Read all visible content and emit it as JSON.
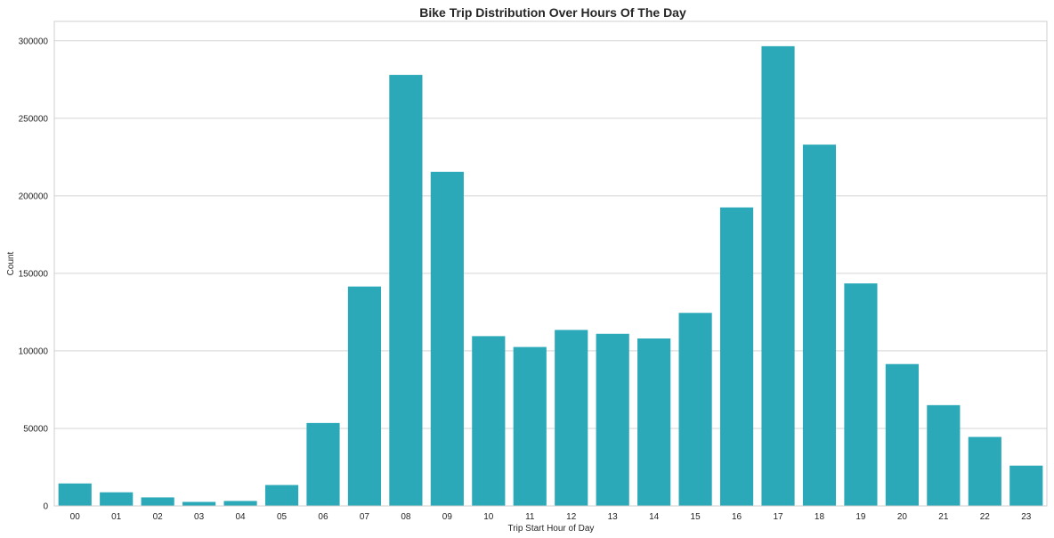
{
  "chart_data": {
    "type": "bar",
    "title": "Bike Trip Distribution Over Hours Of The Day",
    "xlabel": "Trip Start Hour of Day",
    "ylabel": "Count",
    "categories": [
      "00",
      "01",
      "02",
      "03",
      "04",
      "05",
      "06",
      "07",
      "08",
      "09",
      "10",
      "11",
      "12",
      "13",
      "14",
      "15",
      "16",
      "17",
      "18",
      "19",
      "20",
      "21",
      "22",
      "23"
    ],
    "values": [
      14500,
      8800,
      5500,
      2600,
      3200,
      13500,
      53500,
      141500,
      278000,
      215500,
      109500,
      102500,
      113500,
      111000,
      108000,
      124500,
      192500,
      296500,
      233000,
      143500,
      91500,
      65000,
      44500,
      26000
    ],
    "ylim": [
      0,
      312500
    ],
    "yticks": [
      0,
      50000,
      100000,
      150000,
      200000,
      250000,
      300000
    ],
    "ytick_labels": [
      "0",
      "50000",
      "100000",
      "150000",
      "200000",
      "250000",
      "300000"
    ],
    "grid": true,
    "colors": {
      "bar": "#2ca9b8",
      "grid": "#d5d5d5",
      "frame": "#cfcfcf",
      "text": "#262626"
    }
  }
}
